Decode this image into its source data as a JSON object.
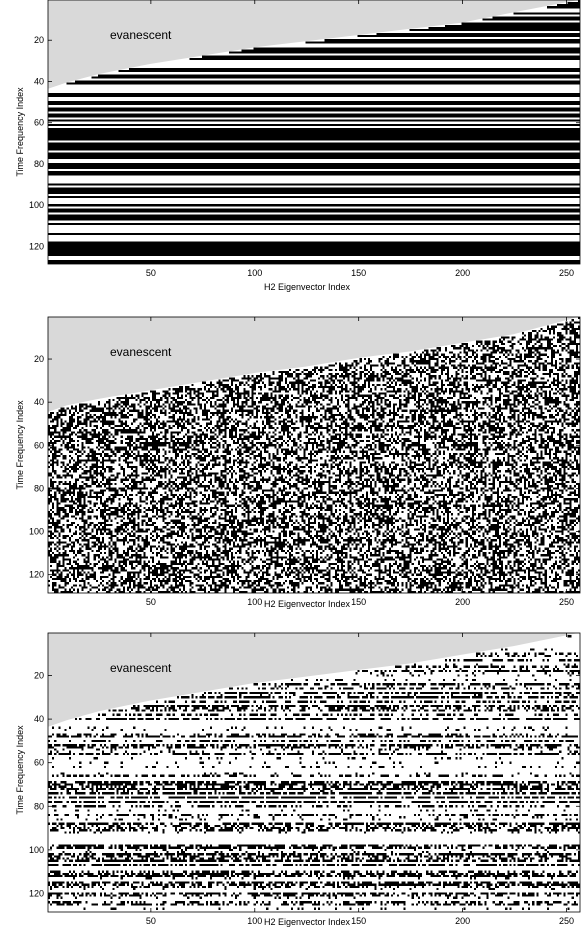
{
  "chart_data": [
    {
      "type": "heatmap",
      "pattern": "horizontal-bands",
      "xlabel": "H2 Eigenvector Index",
      "ylabel": "Time Frequency Index",
      "xlim": [
        1,
        256
      ],
      "ylim": [
        1,
        128
      ],
      "x_ticks": [
        50,
        100,
        150,
        200,
        250
      ],
      "y_ticks": [
        20,
        40,
        60,
        80,
        100,
        120
      ],
      "annotation": "evanescent",
      "evanescent_boundary": [
        [
          1,
          44
        ],
        [
          10,
          41
        ],
        [
          25,
          37
        ],
        [
          50,
          32
        ],
        [
          75,
          28
        ],
        [
          100,
          24
        ],
        [
          125,
          21
        ],
        [
          150,
          18
        ],
        [
          175,
          15
        ],
        [
          200,
          12
        ],
        [
          225,
          7
        ],
        [
          256,
          1
        ]
      ],
      "colors": {
        "region": "#d9d9d9",
        "on": "#000000",
        "off": "#ffffff"
      },
      "seed": 11
    },
    {
      "type": "heatmap",
      "pattern": "random",
      "xlabel": "H2 Eigenvector Index",
      "ylabel": "Time Frequency Index",
      "xlim": [
        1,
        256
      ],
      "ylim": [
        1,
        128
      ],
      "x_ticks": [
        50,
        100,
        150,
        200,
        250
      ],
      "y_ticks": [
        20,
        40,
        60,
        80,
        100,
        120
      ],
      "annotation": "evanescent",
      "evanescent_boundary": [
        [
          1,
          45
        ],
        [
          10,
          42
        ],
        [
          25,
          39
        ],
        [
          50,
          35
        ],
        [
          75,
          31
        ],
        [
          100,
          27
        ],
        [
          125,
          24
        ],
        [
          150,
          20
        ],
        [
          175,
          17
        ],
        [
          200,
          13
        ],
        [
          225,
          9
        ],
        [
          256,
          1
        ]
      ],
      "colors": {
        "region": "#d9d9d9",
        "on": "#000000",
        "off": "#ffffff"
      },
      "seed": 23
    },
    {
      "type": "heatmap",
      "pattern": "sparse-bands",
      "xlabel": "H2 Eigenvector Index",
      "ylabel": "Time Frequency Index",
      "xlim": [
        1,
        256
      ],
      "ylim": [
        1,
        128
      ],
      "x_ticks": [
        50,
        100,
        150,
        200,
        250
      ],
      "y_ticks": [
        20,
        40,
        60,
        80,
        100,
        120
      ],
      "annotation": "evanescent",
      "evanescent_boundary": [
        [
          1,
          44
        ],
        [
          10,
          41
        ],
        [
          25,
          37
        ],
        [
          50,
          32
        ],
        [
          75,
          28
        ],
        [
          100,
          24
        ],
        [
          125,
          21
        ],
        [
          150,
          18
        ],
        [
          175,
          15
        ],
        [
          200,
          11
        ],
        [
          225,
          7
        ],
        [
          256,
          1
        ]
      ],
      "colors": {
        "region": "#d9d9d9",
        "on": "#000000",
        "off": "#ffffff"
      },
      "seed": 37
    }
  ]
}
